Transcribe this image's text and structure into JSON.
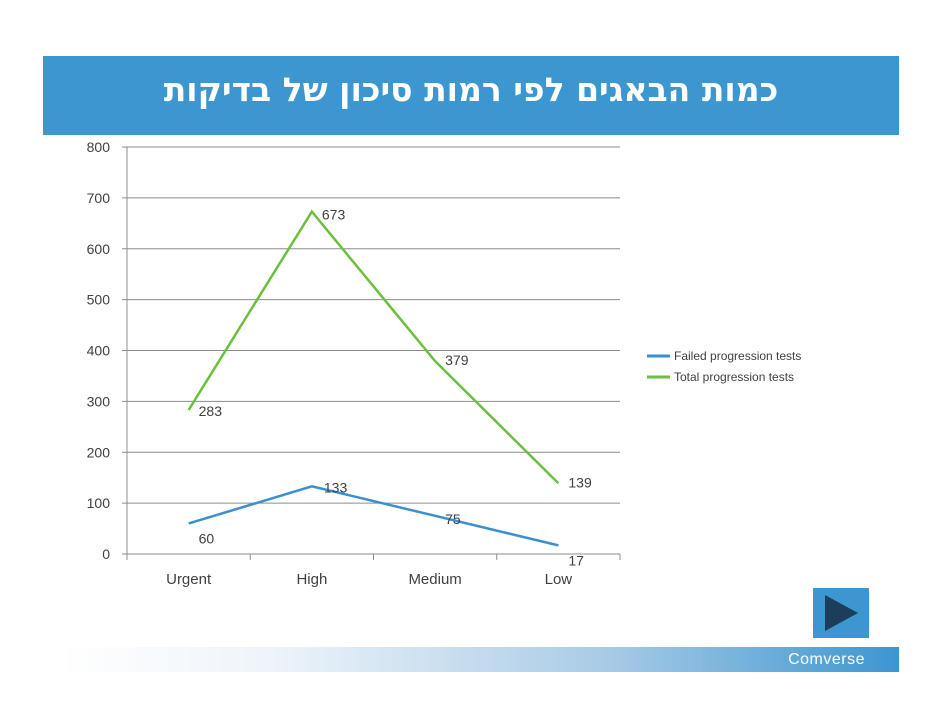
{
  "slide": {
    "title": "כמות הבאגים לפי רמות סיכון של בדיקות",
    "brand": "Comverse",
    "accent_color": "#3c96cf",
    "nav_icon": "play-arrow-icon"
  },
  "chart_data": {
    "type": "line",
    "title": "",
    "xlabel": "",
    "ylabel": "",
    "categories": [
      "Urgent",
      "High",
      "Medium",
      "Low"
    ],
    "ylim": [
      0,
      800
    ],
    "yticks": [
      0,
      100,
      200,
      300,
      400,
      500,
      600,
      700,
      800
    ],
    "grid": true,
    "legend_position": "right",
    "series": [
      {
        "name": "Failed progression tests",
        "color": "#3b8fd0",
        "values": [
          60,
          133,
          75,
          17
        ]
      },
      {
        "name": "Total progression tests",
        "color": "#6cbf3c",
        "values": [
          283,
          673,
          379,
          139
        ]
      }
    ]
  }
}
